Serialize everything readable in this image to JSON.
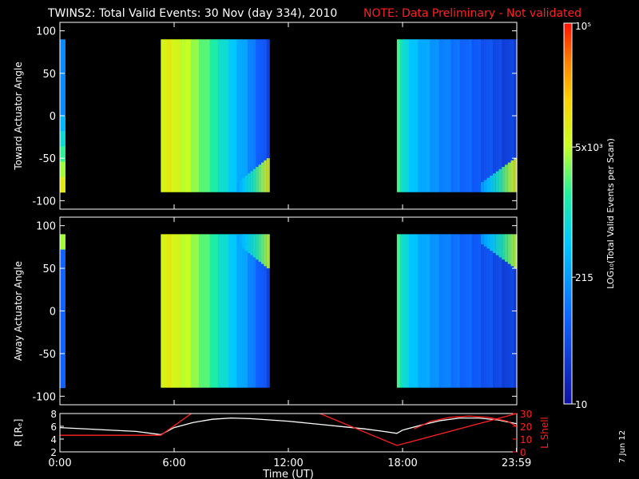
{
  "header": {
    "title": "TWINS2: Total Valid Events: 30 Nov (day 334), 2010",
    "note": "NOTE: Data Preliminary - Not validated"
  },
  "colors": {
    "background": "#000000",
    "axes": "#ffffff",
    "note": "#ff2020",
    "r_line": "#ffffff",
    "lshell_line": "#ff2020"
  },
  "chart_data": [
    {
      "type": "heatmap",
      "title": "",
      "ylabel": "Toward Actuator Angle",
      "ylim": [
        -110,
        110
      ],
      "yticks": [
        100,
        50,
        0,
        -50,
        -100
      ],
      "xlim": [
        0,
        24
      ],
      "value_scale": "log",
      "data_blocks": [
        {
          "t_start": 0.0,
          "t_end": 0.25,
          "angle_range": [
            -90,
            90
          ],
          "description_levels": "low near top, medium-high near bottom"
        },
        {
          "t_start": 5.3,
          "t_end": 11.0,
          "angle_range": [
            -90,
            90
          ],
          "level_start_log": 3.9,
          "level_end_log": 1.6
        },
        {
          "t_start": 17.7,
          "t_end": 24.0,
          "angle_range": [
            -90,
            90
          ],
          "level_start_log": 3.4,
          "level_end_log": 1.5
        }
      ]
    },
    {
      "type": "heatmap",
      "title": "",
      "ylabel": "Away Actuator Angle",
      "ylim": [
        -110,
        110
      ],
      "yticks": [
        100,
        50,
        0,
        -50,
        -100
      ],
      "xlim": [
        0,
        24
      ],
      "value_scale": "log",
      "data_blocks": [
        {
          "t_start": 0.0,
          "t_end": 0.25,
          "angle_range": [
            -90,
            90
          ]
        },
        {
          "t_start": 5.3,
          "t_end": 11.0,
          "angle_range": [
            -90,
            90
          ],
          "level_start_log": 3.9,
          "level_end_log": 1.6
        },
        {
          "t_start": 17.7,
          "t_end": 24.0,
          "angle_range": [
            -90,
            90
          ],
          "level_start_log": 3.4,
          "level_end_log": 1.5
        }
      ]
    },
    {
      "type": "line",
      "ylabel": "R [Rₑ]",
      "y2label": "L Shell",
      "ylim": [
        2,
        8
      ],
      "yticks": [
        2,
        4,
        6,
        8
      ],
      "y2lim": [
        0,
        30
      ],
      "y2ticks": [
        0,
        10,
        20,
        30
      ],
      "xlabel": "Time (UT)",
      "xlim": [
        0,
        24
      ],
      "xticks": [
        0,
        6,
        12,
        18,
        23.983
      ],
      "xtick_labels": [
        "0:00",
        "6:00",
        "12:00",
        "18:00",
        "23:59"
      ],
      "series": [
        {
          "name": "R",
          "color": "#ffffff",
          "x": [
            0,
            2,
            4,
            5.3,
            6,
            7,
            8,
            9,
            10,
            11,
            12,
            13,
            14,
            15,
            16,
            17,
            17.7,
            18,
            19,
            20,
            21,
            22,
            23,
            24
          ],
          "y": [
            5.8,
            5.5,
            5.2,
            4.7,
            5.8,
            6.6,
            7.1,
            7.3,
            7.2,
            7.0,
            6.8,
            6.5,
            6.2,
            5.9,
            5.6,
            5.2,
            4.9,
            5.4,
            6.2,
            6.9,
            7.3,
            7.3,
            7.0,
            6.4
          ]
        },
        {
          "name": "L Shell",
          "color": "#ff2020",
          "segments": [
            {
              "x": [
                0,
                5.3,
                7.0
              ],
              "y": [
                13,
                13,
                31
              ]
            },
            {
              "x": [
                13.5,
                17.7,
                24
              ],
              "y": [
                31,
                5,
                30
              ]
            }
          ],
          "curve": {
            "x": [
              18.6,
              19.5,
              20.5,
              21.5,
              22.5,
              23.5,
              24
            ],
            "y": [
              18,
              24,
              27,
              28,
              27,
              24,
              20
            ]
          }
        }
      ]
    },
    {
      "type": "colorbar",
      "ylabel": "LOG₁₀(Total Valid Events per Scan)",
      "value_range_log": [
        1,
        5
      ],
      "tick_labels": [
        "10",
        "215",
        "5x10³",
        "10⁵"
      ],
      "tick_values_log": [
        1.0,
        2.332,
        3.699,
        5.0
      ]
    }
  ],
  "sidebar_date": "7 Jun 12"
}
